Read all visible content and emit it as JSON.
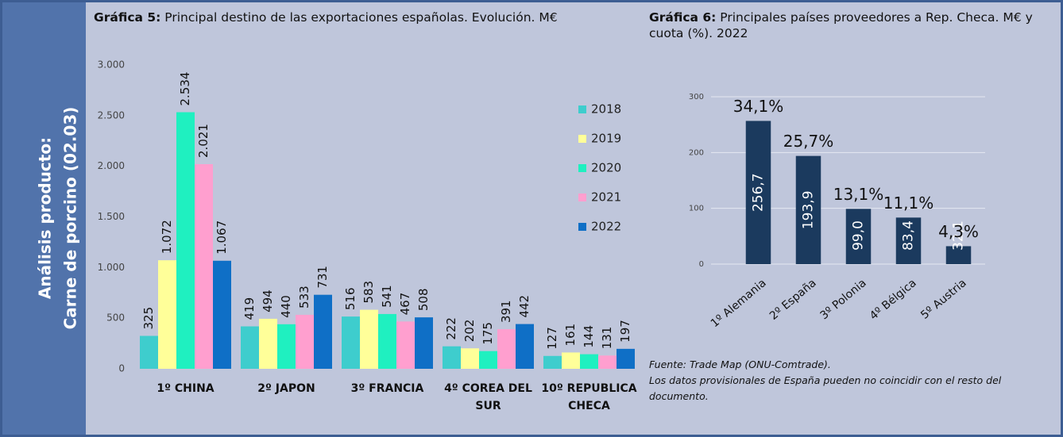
{
  "side_label": [
    "Análisis producto:",
    "Carne de porcino (02.03)"
  ],
  "chart_data": [
    {
      "type": "bar",
      "title": [
        "Gráfica 5:",
        "Principal destino de las exportaciones españolas. Evolución. M€"
      ],
      "categories": [
        "1º CHINA",
        "2º JAPON",
        "3º FRANCIA",
        "4º COREA DEL SUR",
        "10º REPUBLICA CHECA"
      ],
      "series": [
        {
          "name": "2018",
          "color": "#3ecdcd",
          "values": [
            325,
            419,
            516,
            222,
            127
          ],
          "value_labels": [
            "325",
            "419",
            "516",
            "222",
            "127"
          ]
        },
        {
          "name": "2019",
          "color": "#ffff99",
          "values": [
            1072,
            494,
            583,
            202,
            161
          ],
          "value_labels": [
            "1.072",
            "494",
            "583",
            "202",
            "161"
          ]
        },
        {
          "name": "2020",
          "color": "#1ff0c0",
          "values": [
            2534,
            440,
            541,
            175,
            144
          ],
          "value_labels": [
            "2.534",
            "440",
            "541",
            "175",
            "144"
          ]
        },
        {
          "name": "2021",
          "color": "#ff9fcf",
          "values": [
            2021,
            533,
            467,
            391,
            131
          ],
          "value_labels": [
            "2.021",
            "533",
            "467",
            "391",
            "131"
          ]
        },
        {
          "name": "2022",
          "color": "#0f6fc6",
          "values": [
            1067,
            731,
            508,
            442,
            197
          ],
          "value_labels": [
            "1.067",
            "731",
            "508",
            "442",
            "197"
          ]
        }
      ],
      "ylim": [
        0,
        3000
      ],
      "yticks": [
        0,
        500,
        {
          "value": 1000,
          "label": "1.000"
        },
        {
          "value": 1500,
          "label": "1.500"
        },
        {
          "value": 2000,
          "label": "2.000"
        },
        {
          "value": 2500,
          "label": "2.500"
        },
        {
          "value": 3000,
          "label": "3.000"
        }
      ],
      "grid": false,
      "legend": "right"
    },
    {
      "type": "bar",
      "title": [
        "Gráfica 6:",
        "Principales países proveedores a Rep. Checa. M€ y cuota (%). 2022"
      ],
      "categories": [
        "1º Alemania",
        "2º España",
        "3º Polonia",
        "4º Bélgica",
        "5º Austria"
      ],
      "values": [
        256.7,
        193.9,
        99.0,
        83.4,
        32.1
      ],
      "value_labels": [
        "256,7",
        "193,9",
        "99,0",
        "83,4",
        "32,1"
      ],
      "shares": [
        34.1,
        25.7,
        13.1,
        11.1,
        4.3
      ],
      "share_labels": [
        "34,1%",
        "25,7%",
        "13,1%",
        "11,1%",
        "4,3%"
      ],
      "color": "#1b3a5e",
      "ylim": [
        0,
        300
      ],
      "yticks": [
        0,
        100,
        200,
        300
      ],
      "grid": true
    }
  ],
  "source": [
    "Fuente: Trade Map (ONU-Comtrade).",
    "Los datos provisionales de España pueden no coincidir con el resto del documento."
  ]
}
